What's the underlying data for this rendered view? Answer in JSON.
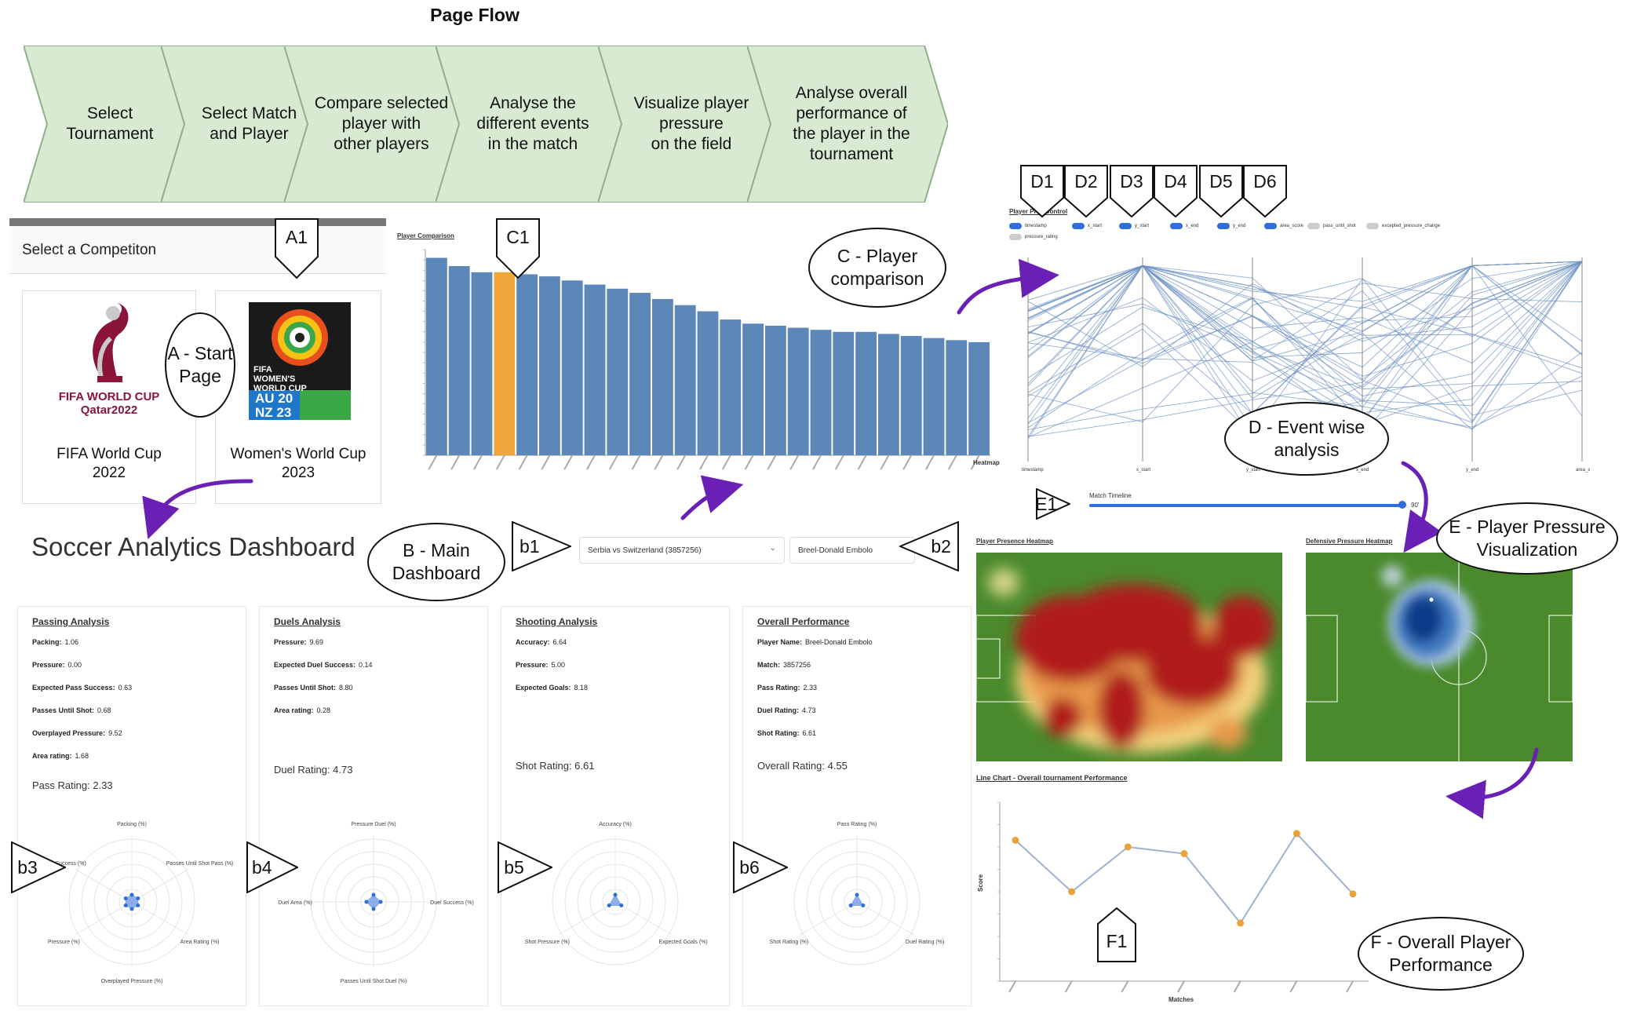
{
  "page_flow": {
    "title": "Page Flow",
    "steps": [
      "Select\nTournament",
      "Select Match\nand Player",
      "Compare selected\nplayer with\nother players",
      "Analyse the\ndifferent events\nin the match",
      "Visualize player\npressure\non the field",
      "Analyse overall\nperformance of\nthe player in the\ntournament"
    ]
  },
  "start_page": {
    "header": "Select a Competiton",
    "logo_qatar_text": "FIFA WORLD CUP\nQatar2022",
    "logo_women_text": "FIFA\nWOMEN'S\nWORLD CUP",
    "logo_women_year": "AU 20\nNZ 23",
    "competitions": [
      {
        "label": "FIFA World Cup\n2022"
      },
      {
        "label": "Women's World Cup\n2023"
      }
    ]
  },
  "dashboard": {
    "title": "Soccer Analytics Dashboard",
    "match_select": "Serbia vs Switzerland (3857256)",
    "player_select": "Breel-Donald Embolo"
  },
  "callouts": {
    "A": "A - Start\nPage",
    "B": "B - Main\nDashboard",
    "C": "C - Player\ncomparison",
    "D": "D - Event wise\nanalysis",
    "E": "E - Player Pressure\nVisualization",
    "F": "F - Overall Player\nPerformance"
  },
  "tags": {
    "A1": "A1",
    "C1": "C1",
    "D1": "D1",
    "D2": "D2",
    "D3": "D3",
    "D4": "D4",
    "D5": "D5",
    "D6": "D6",
    "E1": "E1",
    "F1": "F1",
    "b1": "b1",
    "b2": "b2",
    "b3": "b3",
    "b4": "b4",
    "b5": "b5",
    "b6": "b6"
  },
  "cards": {
    "passing": {
      "title": "Passing Analysis",
      "lines": [
        [
          "Packing:",
          "1.06"
        ],
        [
          "Pressure:",
          "0.00"
        ],
        [
          "Expected Pass Success:",
          "0.63"
        ],
        [
          "Passes Until Shot:",
          "0.68"
        ],
        [
          "Overplayed Pressure:",
          "9.52"
        ],
        [
          "Area rating:",
          "1.68"
        ]
      ],
      "rating": "Pass Rating: 2.33",
      "radar": [
        "Packing (%)",
        "Passes Until Shot Pass (%)",
        "Area Rating (%)",
        "Overplayed Pressure (%)",
        "Pressure (%)",
        "Pass Success (%)"
      ]
    },
    "duels": {
      "title": "Duels Analysis",
      "lines": [
        [
          "Pressure:",
          "9.69"
        ],
        [
          "Expected Duel Success:",
          "0.14"
        ],
        [
          "Passes Until Shot:",
          "8.80"
        ],
        [
          "Area rating:",
          "0.28"
        ]
      ],
      "rating": "Duel Rating: 4.73",
      "radar": [
        "Pressure Duel (%)",
        "Duel Success (%)",
        "Passes Until Shot Duel (%)",
        "Duel Area (%)"
      ]
    },
    "shooting": {
      "title": "Shooting Analysis",
      "lines": [
        [
          "Accuracy:",
          "6.64"
        ],
        [
          "Pressure:",
          "5.00"
        ],
        [
          "Expected Goals:",
          "8.18"
        ]
      ],
      "rating": "Shot Rating: 6.61",
      "radar": [
        "Accuracy (%)",
        "Expected Goals (%)",
        "Shot Pressure (%)"
      ]
    },
    "overall": {
      "title": "Overall Performance",
      "lines": [
        [
          "Player Name:",
          "Breel-Donald Embolo"
        ],
        [
          "Match:",
          "3857256"
        ],
        [
          "Pass Rating:",
          "2.33"
        ],
        [
          "Duel Rating:",
          "4.73"
        ],
        [
          "Shot Rating:",
          "6.61"
        ]
      ],
      "rating": "Overall Rating: 4.55",
      "radar": [
        "Pass Rating (%)",
        "Duel Rating (%)",
        "Shot Rating (%)"
      ]
    }
  },
  "parallel": {
    "title": "Player Pre...Control",
    "toggles": [
      "timestamp",
      "x_start",
      "y_start",
      "x_end",
      "y_end",
      "area_score",
      "pass_until_shot",
      "excepted_pressure_change",
      "pressure_rating"
    ],
    "axes": [
      "timestamp",
      "x_start",
      "y_start",
      "x_end",
      "y_end",
      "area_sco"
    ]
  },
  "timeline": {
    "label": "Match Timeline",
    "value": "90'"
  },
  "heatmaps": {
    "presence_title": "Player Presence Heatmap",
    "defensive_title": "Defensive Pressure Heatmap"
  },
  "linechart": {
    "title": "Line Chart - Overall tournament Performance",
    "ylabel": "Score",
    "xlabel": "Matches"
  },
  "chart_data": [
    {
      "type": "bar",
      "title": "Player Comparison",
      "xlabel": "Heatmap",
      "values": [
        9.6,
        9.2,
        8.9,
        8.9,
        8.8,
        8.7,
        8.5,
        8.3,
        8.1,
        7.9,
        7.6,
        7.3,
        7.0,
        6.6,
        6.4,
        6.3,
        6.2,
        6.1,
        6.0,
        6.0,
        5.9,
        5.8,
        5.7,
        5.6,
        5.5
      ],
      "highlight_index": 3,
      "bar_color": "#5b87b9",
      "highlight_color": "#f0a63a"
    },
    {
      "type": "line",
      "title": "Line Chart - Overall tournament Performance",
      "ylabel": "Score",
      "xlabel": "Matches",
      "values": [
        4.15,
        3.0,
        4.0,
        3.85,
        2.3,
        4.3,
        2.95
      ],
      "ylim": [
        1.0,
        5.0
      ],
      "line_color": "#9fb3cf",
      "point_color": "#e8a33c"
    }
  ],
  "colors": {
    "chevron_fill": "#d9ead3",
    "chevron_stroke": "#8fb088",
    "arrow": "#6a1fb5",
    "pitch": "#4a8a2c"
  }
}
